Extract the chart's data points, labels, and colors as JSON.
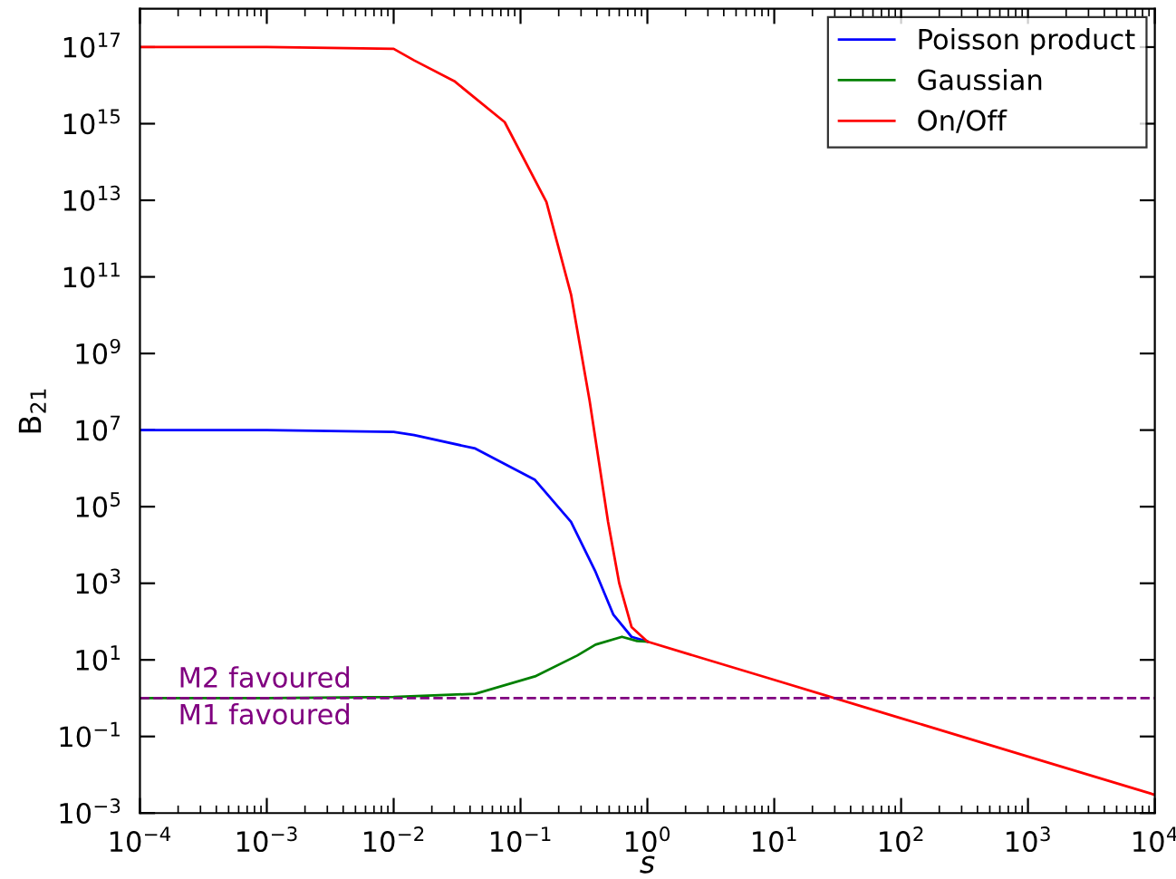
{
  "chart_data": {
    "type": "line",
    "xlabel": "s",
    "ylabel": "B$_{21}$",
    "log": "xy",
    "xlim": [
      0.0001,
      10000
    ],
    "ylim": [
      0.001,
      1e+18
    ],
    "xticks": [
      {
        "value": 0.0001,
        "label": "10$^{−4}$"
      },
      {
        "value": 0.001,
        "label": "10$^{−3}$"
      },
      {
        "value": 0.01,
        "label": "10$^{−2}$"
      },
      {
        "value": 0.1,
        "label": "10$^{−1}$"
      },
      {
        "value": 1,
        "label": "10$^{0}$"
      },
      {
        "value": 10,
        "label": "10$^{1}$"
      },
      {
        "value": 100,
        "label": "10$^{2}$"
      },
      {
        "value": 1000,
        "label": "10$^{3}$"
      },
      {
        "value": 10000,
        "label": "10$^{4}$"
      }
    ],
    "yticks": [
      {
        "value": 0.001,
        "label": "10$^{−3}$"
      },
      {
        "value": 0.1,
        "label": "10$^{−1}$"
      },
      {
        "value": 10,
        "label": "10$^{1}$"
      },
      {
        "value": 1000,
        "label": "10$^{3}$"
      },
      {
        "value": 100000,
        "label": "10$^{5}$"
      },
      {
        "value": 10000000,
        "label": "10$^{7}$"
      },
      {
        "value": 1000000000.0,
        "label": "10$^{9}$"
      },
      {
        "value": 100000000000.0,
        "label": "10$^{11}$"
      },
      {
        "value": 10000000000000.0,
        "label": "10$^{13}$"
      },
      {
        "value": 1000000000000000.0,
        "label": "10$^{15}$"
      },
      {
        "value": 1e+17,
        "label": "10$^{17}$"
      }
    ],
    "series": [
      {
        "name": "Poisson product",
        "color": "#0000ff",
        "x": [
          0.0001,
          0.001,
          0.01,
          0.0145,
          0.044,
          0.13,
          0.25,
          0.39,
          0.54,
          0.75,
          1
        ],
        "values": [
          10000000,
          10000000,
          9000000,
          7400000,
          3300000,
          500000,
          40000,
          2000,
          150,
          40,
          30
        ]
      },
      {
        "name": "Gaussian",
        "color": "#008000",
        "x": [
          0.0001,
          0.001,
          0.01,
          0.044,
          0.13,
          0.28,
          0.39,
          0.63,
          0.83,
          1
        ],
        "values": [
          1,
          1,
          1.07,
          1.3,
          3.7,
          13,
          25,
          40,
          31,
          30
        ]
      },
      {
        "name": "On/Off",
        "color": "#ff0000",
        "x": [
          0.0001,
          0.001,
          0.01,
          0.0145,
          0.03,
          0.075,
          0.16,
          0.25,
          0.35,
          0.49,
          0.6,
          0.75,
          1,
          10,
          100,
          1000,
          10000
        ],
        "values": [
          1e+17,
          1e+17,
          9e+16,
          4.5e+16,
          1.3e+16,
          1100000000000000.0,
          9000000000000.0,
          35000000000.0,
          60000000,
          40000,
          1000,
          72,
          30,
          3,
          0.3,
          0.03,
          0.003
        ]
      }
    ],
    "ref_lines": [
      {
        "axis": "y",
        "value": 1,
        "color": "#800080",
        "line_style": "dashed"
      }
    ],
    "annotations": [
      {
        "text": "M2 favoured",
        "x": 0.0002,
        "y": 1
      },
      {
        "text": "M1 favoured",
        "x": 0.0002,
        "y": 1
      }
    ],
    "legend": "top right",
    "grid": false
  }
}
